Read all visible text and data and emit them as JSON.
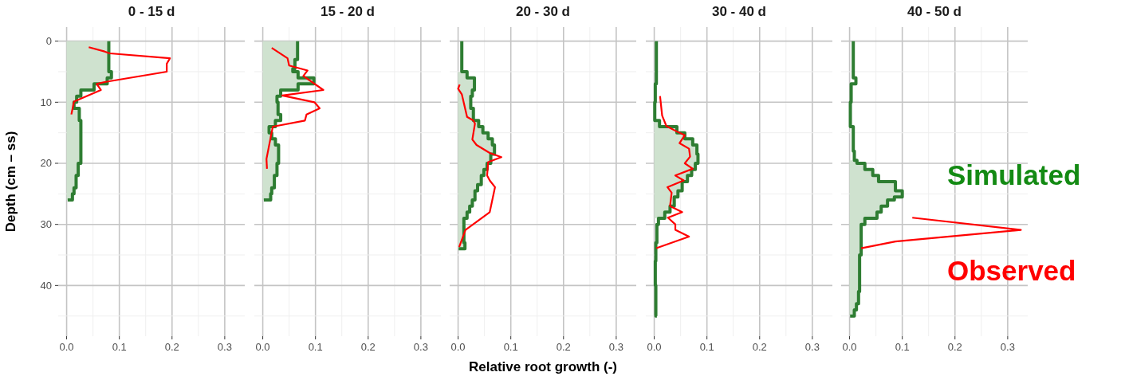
{
  "chart_data": [
    {
      "type": "step",
      "title": "0 - 15 d",
      "ylabel": "Depth (cm – ss)",
      "xlim": [
        -0.016,
        0.338
      ],
      "ylim": [
        48.3,
        -2.3
      ],
      "grid": true,
      "xticks": [
        {
          "value": 0,
          "label": "0.0"
        },
        0.1,
        0.2,
        0.3,
        {
          "value": 0.05,
          "label": null
        },
        {
          "value": 0.15,
          "label": null
        },
        {
          "value": 0.25,
          "label": null
        }
      ],
      "yticks": [
        0,
        10,
        20,
        30,
        40,
        {
          "value": 5,
          "label": null
        },
        {
          "value": 15,
          "label": null
        },
        {
          "value": 25,
          "label": null
        },
        {
          "value": 35,
          "label": null
        },
        {
          "value": 45,
          "label": null
        }
      ],
      "series": [
        {
          "type": "area",
          "color": "#cfe2cf",
          "x": [
            0.08,
            0.085,
            0.077,
            0.052,
            0.027,
            0.019,
            0.014,
            0.024,
            0.027,
            0.022,
            0.018,
            0.014,
            0.011,
            0.002
          ],
          "values": [
            0,
            5,
            6,
            7,
            8,
            9,
            10,
            11,
            13,
            20,
            22,
            24,
            25,
            26
          ]
        },
        {
          "color": "#2e7d32",
          "x": [
            0.08,
            0.085,
            0.077,
            0.052,
            0.027,
            0.019,
            0.014,
            0.024,
            0.027,
            0.022,
            0.018,
            0.014,
            0.011,
            0.002
          ],
          "values": [
            0,
            5,
            6,
            7,
            8,
            9,
            10,
            11,
            13,
            20,
            22,
            24,
            25,
            26
          ]
        },
        {
          "type": "line",
          "color": "#ff0000",
          "x": [
            0.042,
            0.072,
            0.082,
            0.196,
            0.19,
            0.19,
            0.072,
            0.057,
            0.065,
            0.014,
            0.009
          ],
          "values": [
            1,
            1.7,
            2,
            2.8,
            3.7,
            5,
            6.7,
            7,
            8,
            9.9,
            12
          ]
        }
      ]
    },
    {
      "type": "step",
      "title": "15 - 20 d",
      "xlim": [
        -0.016,
        0.338
      ],
      "ylim": [
        48.3,
        -2.3
      ],
      "grid": true,
      "tick_labels": "x",
      "xticks": [
        {
          "value": 0,
          "label": "0.0"
        },
        0.1,
        0.2,
        0.3,
        {
          "value": 0.05,
          "label": null
        },
        {
          "value": 0.15,
          "label": null
        },
        {
          "value": 0.25,
          "label": null
        }
      ],
      "yticks": [
        0,
        10,
        20,
        30,
        40,
        {
          "value": 5,
          "label": null
        },
        {
          "value": 15,
          "label": null
        },
        {
          "value": 25,
          "label": null
        },
        {
          "value": 35,
          "label": null
        },
        {
          "value": 45,
          "label": null
        }
      ],
      "series": [
        {
          "type": "area",
          "color": "#cfe2cf",
          "x": [
            0.066,
            0.061,
            0.057,
            0.067,
            0.097,
            0.067,
            0.034,
            0.027,
            0.029,
            0.034,
            0.024,
            0.012,
            0.017,
            0.024,
            0.03,
            0.027,
            0.022,
            0.017,
            0.015,
            0.002
          ],
          "values": [
            0,
            3,
            4.5,
            5,
            6,
            7,
            8,
            9,
            10,
            12,
            13,
            14,
            15,
            16,
            17,
            20,
            22,
            24,
            25,
            26
          ]
        },
        {
          "color": "#2e7d32",
          "x": [
            0.066,
            0.061,
            0.057,
            0.067,
            0.097,
            0.067,
            0.034,
            0.027,
            0.029,
            0.034,
            0.024,
            0.012,
            0.017,
            0.024,
            0.03,
            0.027,
            0.022,
            0.017,
            0.015,
            0.002
          ],
          "values": [
            0,
            3,
            4.5,
            5,
            6,
            7,
            8,
            9,
            10,
            12,
            13,
            14,
            15,
            16,
            17,
            20,
            22,
            24,
            25,
            26
          ]
        },
        {
          "type": "line",
          "color": "#ff0000",
          "x": [
            0.017,
            0.047,
            0.05,
            0.085,
            0.077,
            0.115,
            0.037,
            0.098,
            0.108,
            0.083,
            0.08,
            0.019,
            0.007,
            0.008
          ],
          "values": [
            1.1,
            2.8,
            4,
            4.8,
            5.7,
            8,
            8.9,
            10,
            11,
            12,
            13,
            14,
            19.3,
            20.9
          ]
        }
      ]
    },
    {
      "type": "step",
      "title": "20 - 30 d",
      "xlabel": "Relative root growth (-)",
      "xlim": [
        -0.016,
        0.338
      ],
      "ylim": [
        48.3,
        -2.3
      ],
      "grid": true,
      "tick_labels": "x",
      "xticks": [
        {
          "value": 0,
          "label": "0.0"
        },
        0.1,
        0.2,
        0.3,
        {
          "value": 0.05,
          "label": null
        },
        {
          "value": 0.15,
          "label": null
        },
        {
          "value": 0.25,
          "label": null
        }
      ],
      "yticks": [
        0,
        10,
        20,
        30,
        40,
        {
          "value": 5,
          "label": null
        },
        {
          "value": 15,
          "label": null
        },
        {
          "value": 25,
          "label": null
        },
        {
          "value": 35,
          "label": null
        },
        {
          "value": 45,
          "label": null
        }
      ],
      "series": [
        {
          "type": "area",
          "color": "#cfe2cf",
          "x": [
            0.017,
            0.031,
            0.027,
            0.024,
            0.029,
            0.039,
            0.047,
            0.057,
            0.065,
            0.069,
            0.062,
            0.055,
            0.049,
            0.044,
            0.037,
            0.032,
            0.027,
            0.022,
            0.017,
            0.011,
            0.013,
            0.001
          ],
          "values": [
            5,
            6,
            8,
            9,
            11,
            13,
            14,
            15,
            16,
            17,
            18.5,
            20,
            21,
            22,
            23.5,
            24.5,
            26,
            27,
            28,
            29,
            33,
            34
          ]
        },
        {
          "color": "#2e7d32",
          "x": [
            0.007,
            0.017,
            0.031,
            0.027,
            0.024,
            0.029,
            0.039,
            0.047,
            0.057,
            0.065,
            0.069,
            0.062,
            0.055,
            0.049,
            0.044,
            0.037,
            0.032,
            0.027,
            0.022,
            0.017,
            0.011,
            0.013,
            0.001
          ],
          "values": [
            0,
            5,
            6,
            8,
            9,
            11,
            13,
            14,
            15,
            16,
            17,
            18.5,
            20,
            21,
            22,
            23.5,
            24.5,
            26,
            27,
            28,
            29,
            33,
            34
          ]
        },
        {
          "type": "line",
          "color": "#ff0000",
          "x": [
            0.003,
            0,
            0.007,
            0.017,
            0.029,
            0.032,
            0.027,
            0.035,
            0.06,
            0.082,
            0.057,
            0.055,
            0.06,
            0.07,
            0.06,
            0.014,
            0.002
          ],
          "values": [
            7.1,
            7.8,
            8.7,
            12.4,
            13,
            13.5,
            16.1,
            17,
            18.3,
            19,
            19.8,
            22,
            22.8,
            23.9,
            28,
            30.9,
            33.7
          ]
        }
      ]
    },
    {
      "type": "step",
      "title": "30 - 40 d",
      "xlim": [
        -0.016,
        0.338
      ],
      "ylim": [
        48.3,
        -2.3
      ],
      "grid": true,
      "tick_labels": "x",
      "xticks": [
        {
          "value": 0,
          "label": "0.0"
        },
        0.1,
        0.2,
        0.3,
        {
          "value": 0.05,
          "label": null
        },
        {
          "value": 0.15,
          "label": null
        },
        {
          "value": 0.25,
          "label": null
        }
      ],
      "yticks": [
        0,
        10,
        20,
        30,
        40,
        {
          "value": 5,
          "label": null
        },
        {
          "value": 15,
          "label": null
        },
        {
          "value": 25,
          "label": null
        },
        {
          "value": 35,
          "label": null
        },
        {
          "value": 45,
          "label": null
        }
      ],
      "series": [
        {
          "type": "area",
          "color": "#cfe2cf",
          "x": [
            0.01,
            0.043,
            0.058,
            0.073,
            0.081,
            0.083,
            0.078,
            0.071,
            0.063,
            0.053,
            0.045,
            0.038,
            0.03,
            0.02,
            0
          ],
          "values": [
            13,
            14,
            15,
            16,
            17,
            18.5,
            20,
            21,
            22,
            23,
            24.5,
            25.5,
            27,
            28,
            29
          ]
        },
        {
          "color": "#2e7d32",
          "x": [
            0.004,
            0.002,
            0.001,
            0.01,
            0.043,
            0.058,
            0.073,
            0.081,
            0.083,
            0.078,
            0.071,
            0.063,
            0.053,
            0.045,
            0.038,
            0.03,
            0.02,
            0.008,
            0.005,
            0.003,
            0.002,
            0.003,
            0.005
          ],
          "values": [
            0,
            7,
            10,
            13,
            14,
            15,
            16,
            17,
            18.5,
            20,
            21,
            22,
            23,
            24.5,
            25.5,
            27,
            28,
            29,
            30,
            33,
            36,
            40,
            45
          ]
        },
        {
          "type": "line",
          "color": "#ff0000",
          "x": [
            0.011,
            0.015,
            0.023,
            0.043,
            0.058,
            0.048,
            0.066,
            0.068,
            0.058,
            0.073,
            0.04,
            0.056,
            0.025,
            0.033,
            0.03,
            0.053,
            0.026,
            0.04,
            0.04,
            0.066,
            0.004
          ],
          "values": [
            9,
            12.2,
            13.9,
            14.8,
            15.4,
            16.7,
            17.6,
            18.9,
            20,
            20.9,
            22,
            22.8,
            23.9,
            24.8,
            27,
            28,
            28.9,
            30,
            30.9,
            32,
            33.9
          ]
        }
      ]
    },
    {
      "type": "step",
      "title": "40 - 50 d",
      "xlim": [
        -0.016,
        0.338
      ],
      "ylim": [
        48.3,
        -2.3
      ],
      "grid": true,
      "tick_labels": "x",
      "xticks": [
        {
          "value": 0,
          "label": "0.0"
        },
        0.1,
        0.2,
        0.3,
        {
          "value": 0.05,
          "label": null
        },
        {
          "value": 0.15,
          "label": null
        },
        {
          "value": 0.25,
          "label": null
        }
      ],
      "yticks": [
        0,
        10,
        20,
        30,
        40,
        {
          "value": 5,
          "label": null
        },
        {
          "value": 15,
          "label": null
        },
        {
          "value": 25,
          "label": null
        },
        {
          "value": 35,
          "label": null
        },
        {
          "value": 45,
          "label": null
        }
      ],
      "series": [
        {
          "type": "area",
          "color": "#cfe2cf",
          "x": [
            0.014,
            0.029,
            0.044,
            0.055,
            0.087,
            0.1,
            0.085,
            0.072,
            0.06,
            0.052,
            0.029,
            0.022,
            0.019,
            0.017,
            0.013,
            0.009,
            0
          ],
          "values": [
            19.5,
            20,
            21,
            22,
            23,
            24.5,
            25.5,
            26,
            27,
            28,
            29,
            30,
            35,
            41,
            43,
            44,
            45
          ]
        },
        {
          "name": "Simulated",
          "color": "#2e7d32",
          "x": [
            0.007,
            0.012,
            0.003,
            0.0015,
            0.007,
            0.009,
            0.014,
            0.029,
            0.044,
            0.055,
            0.087,
            0.1,
            0.085,
            0.072,
            0.06,
            0.052,
            0.029,
            0.022,
            0.019,
            0.017,
            0.013,
            0.009,
            0.001
          ],
          "values": [
            0,
            6,
            7,
            10,
            14,
            18,
            19.5,
            20,
            21,
            22,
            23,
            24.5,
            25.5,
            26,
            27,
            28,
            29,
            30,
            35,
            41,
            43,
            44,
            45
          ]
        },
        {
          "type": "line",
          "name": "Observed",
          "color": "#ff0000",
          "x": [
            0.119,
            0.325,
            0.087,
            0.022
          ],
          "values": [
            28.9,
            30.9,
            32.8,
            33.9
          ]
        }
      ]
    }
  ]
}
